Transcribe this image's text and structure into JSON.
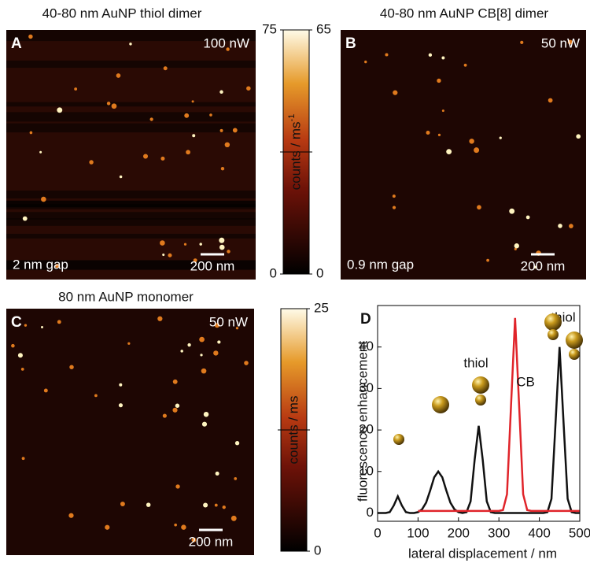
{
  "panels": [
    {
      "label": "A",
      "title": "40-80 nm AuNP thiol dimer",
      "power": "100  nW",
      "gap": "2 nm gap",
      "scale_bar": "200 nm"
    },
    {
      "label": "B",
      "title": "40-80 nm AuNP CB[8] dimer",
      "power": "50 nW",
      "gap": "0.9 nm gap",
      "scale_bar": "200 nm"
    },
    {
      "label": "C",
      "title": "80 nm AuNP monomer",
      "power": "50  nW",
      "scale_bar": "200 nm"
    }
  ],
  "colorbars": [
    {
      "left_ticks": [
        0,
        75
      ],
      "right_ticks": [
        0,
        65
      ],
      "label": "counts / ms",
      "label_sup": "-1"
    },
    {
      "ticks": [
        0,
        25
      ],
      "label": "counts / ms"
    }
  ],
  "chart_data": {
    "type": "line",
    "panel_label": "D",
    "x_label": "lateral displacement / nm",
    "y_label": "fluorescence enhancement",
    "x": [
      0,
      10,
      20,
      30,
      40,
      50,
      60,
      70,
      80,
      90,
      100,
      110,
      120,
      130,
      140,
      150,
      160,
      170,
      180,
      190,
      200,
      210,
      220,
      230,
      240,
      250,
      260,
      270,
      280,
      290,
      300,
      310,
      320,
      330,
      340,
      350,
      360,
      370,
      380,
      390,
      400,
      410,
      420,
      430,
      440,
      450,
      460,
      470,
      480,
      490,
      500
    ],
    "series": [
      {
        "color": "#111111",
        "values": [
          0,
          0,
          0,
          0.2,
          1.8,
          4,
          1.8,
          0.2,
          0,
          0,
          0.2,
          0.9,
          2.5,
          5.4,
          8.6,
          10,
          8.6,
          5.4,
          2.5,
          0.9,
          0.2,
          0,
          0.2,
          2.8,
          12.8,
          21,
          12.8,
          2.8,
          0.2,
          0,
          0,
          0,
          0,
          0,
          0,
          0,
          0,
          0,
          0,
          0,
          0,
          0,
          0.2,
          3.4,
          21.6,
          40,
          21.6,
          3.4,
          0.2,
          0,
          0
        ]
      },
      {
        "color": "#e0242a",
        "values": [
          null,
          null,
          null,
          null,
          null,
          null,
          null,
          null,
          null,
          null,
          0.5,
          0.5,
          0.5,
          0.5,
          0.5,
          0.5,
          0.5,
          0.5,
          0.5,
          0.5,
          0.5,
          0.5,
          0.5,
          0.5,
          0.5,
          0.5,
          0.5,
          0.5,
          0.5,
          0.5,
          0.5,
          0.7,
          4.5,
          25.9,
          47,
          25.9,
          4.5,
          0.7,
          0.5,
          0.5,
          0.5,
          0.5,
          0.5,
          0.5,
          0.5,
          0.5,
          0.5,
          0.5,
          0.5,
          0.5,
          0.5
        ]
      }
    ],
    "annotations": [
      "thiol",
      "CB",
      "thiol"
    ],
    "xlim": [
      0,
      500
    ],
    "xticks": [
      0,
      100,
      200,
      300,
      400,
      500
    ],
    "ylim": [
      -2,
      50
    ],
    "yticks": [
      0,
      10,
      20,
      30,
      40
    ]
  }
}
